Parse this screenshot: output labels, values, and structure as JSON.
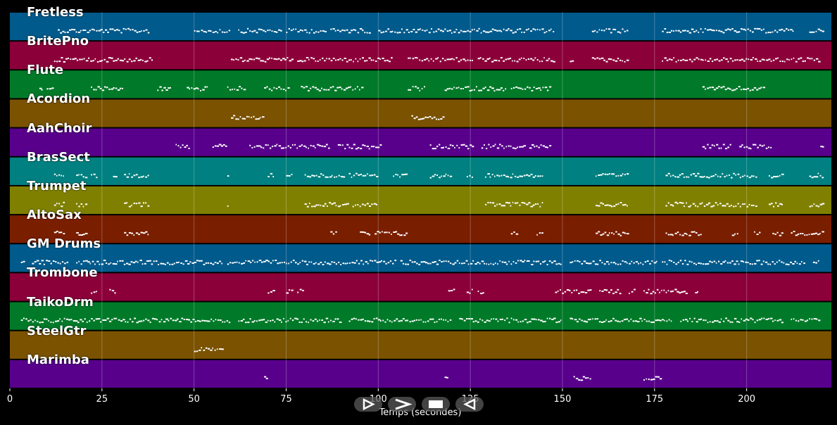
{
  "chart_data": {
    "type": "timeline",
    "xlabel": "Temps (secondes)",
    "xlim": [
      0,
      223
    ],
    "xticks": [
      0,
      25,
      50,
      75,
      100,
      125,
      150,
      175,
      200
    ],
    "grid": true,
    "tracks": [
      {
        "name": "Fretless",
        "color": "#005a8c",
        "notes": [
          [
            13,
            38
          ],
          [
            50,
            60
          ],
          [
            62,
            74
          ],
          [
            75,
            86
          ],
          [
            87,
            98
          ],
          [
            100,
            110
          ],
          [
            110,
            148
          ],
          [
            158,
            168
          ],
          [
            177,
            213
          ],
          [
            217,
            221
          ]
        ]
      },
      {
        "name": "BritePno",
        "color": "#8c003a",
        "notes": [
          [
            12,
            39
          ],
          [
            60,
            77
          ],
          [
            78,
            104
          ],
          [
            108,
            126
          ],
          [
            127,
            148
          ],
          [
            152,
            153
          ],
          [
            158,
            168
          ],
          [
            177,
            220
          ]
        ]
      },
      {
        "name": "Flute",
        "color": "#007a28",
        "notes": [
          [
            8,
            9
          ],
          [
            10,
            12
          ],
          [
            22,
            31
          ],
          [
            40,
            44
          ],
          [
            48,
            54
          ],
          [
            59,
            64
          ],
          [
            69,
            76
          ],
          [
            79,
            96
          ],
          [
            108,
            113
          ],
          [
            118,
            135
          ],
          [
            136,
            147
          ],
          [
            188,
            205
          ]
        ]
      },
      {
        "name": "Acordion",
        "color": "#7a5200",
        "notes": [
          [
            60,
            69
          ],
          [
            109,
            118
          ]
        ]
      },
      {
        "name": "AahChoir",
        "color": "#58008c",
        "notes": [
          [
            45,
            49
          ],
          [
            55,
            59
          ],
          [
            65,
            87
          ],
          [
            89,
            101
          ],
          [
            114,
            126
          ],
          [
            128,
            140
          ],
          [
            141,
            147
          ],
          [
            188,
            196
          ],
          [
            198,
            207
          ],
          [
            220,
            221
          ]
        ]
      },
      {
        "name": "BrasSect",
        "color": "#008080",
        "notes": [
          [
            12,
            15
          ],
          [
            18,
            21
          ],
          [
            22,
            24
          ],
          [
            28,
            29
          ],
          [
            31,
            38
          ],
          [
            59,
            59
          ],
          [
            70,
            72
          ],
          [
            75,
            77
          ],
          [
            80,
            91
          ],
          [
            92,
            100
          ],
          [
            104,
            108
          ],
          [
            114,
            120
          ],
          [
            124,
            126
          ],
          [
            129,
            145
          ],
          [
            159,
            168
          ],
          [
            178,
            203
          ],
          [
            206,
            210
          ],
          [
            217,
            221
          ]
        ]
      },
      {
        "name": "Trumpet",
        "color": "#808000",
        "notes": [
          [
            12,
            15
          ],
          [
            18,
            21
          ],
          [
            31,
            38
          ],
          [
            59,
            59
          ],
          [
            80,
            92
          ],
          [
            93,
            100
          ],
          [
            129,
            145
          ],
          [
            159,
            168
          ],
          [
            178,
            203
          ],
          [
            206,
            210
          ],
          [
            217,
            221
          ]
        ]
      },
      {
        "name": "AltoSax",
        "color": "#7a1e00",
        "notes": [
          [
            12,
            15
          ],
          [
            18,
            21
          ],
          [
            31,
            38
          ],
          [
            87,
            89
          ],
          [
            95,
            98
          ],
          [
            99,
            104
          ],
          [
            104,
            108
          ],
          [
            136,
            138
          ],
          [
            143,
            145
          ],
          [
            159,
            168
          ],
          [
            178,
            188
          ],
          [
            196,
            198
          ],
          [
            202,
            204
          ],
          [
            207,
            210
          ],
          [
            212,
            221
          ]
        ]
      },
      {
        "name": "GM Drums",
        "color": "#005a8c",
        "notes": [
          [
            3,
            4
          ],
          [
            6,
            16
          ],
          [
            18,
            58
          ],
          [
            59,
            105
          ],
          [
            106,
            150
          ],
          [
            152,
            176
          ],
          [
            177,
            216
          ],
          [
            218,
            220
          ]
        ]
      },
      {
        "name": "Trombone",
        "color": "#8c003a",
        "notes": [
          [
            22,
            24
          ],
          [
            27,
            29
          ],
          [
            70,
            72
          ],
          [
            75,
            77
          ],
          [
            78,
            80
          ],
          [
            119,
            121
          ],
          [
            124,
            126
          ],
          [
            127,
            129
          ],
          [
            148,
            158
          ],
          [
            160,
            166
          ],
          [
            168,
            170
          ],
          [
            172,
            184
          ],
          [
            186,
            187
          ]
        ]
      },
      {
        "name": "TaikoDrm",
        "color": "#007a28",
        "notes": [
          [
            3,
            30
          ],
          [
            30,
            60
          ],
          [
            62,
            90
          ],
          [
            92,
            120
          ],
          [
            122,
            150
          ],
          [
            152,
            180
          ],
          [
            182,
            210
          ],
          [
            212,
            220
          ]
        ]
      },
      {
        "name": "SteelGtr",
        "color": "#7a5200",
        "notes": [
          [
            50,
            58
          ]
        ]
      },
      {
        "name": "Marimba",
        "color": "#58008c",
        "notes": [
          [
            69,
            70
          ],
          [
            118,
            119
          ],
          [
            153,
            158
          ],
          [
            172,
            177
          ]
        ]
      }
    ]
  },
  "controls": [
    {
      "id": "play",
      "icon": "play-icon"
    },
    {
      "id": "forward",
      "icon": "forward-icon"
    },
    {
      "id": "stop",
      "icon": "stop-icon"
    },
    {
      "id": "back",
      "icon": "back-icon"
    }
  ]
}
